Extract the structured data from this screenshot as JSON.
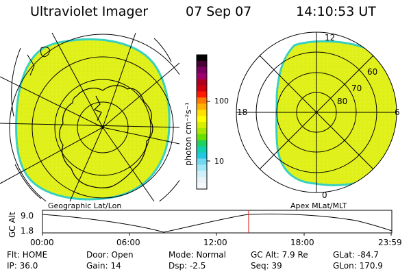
{
  "header": {
    "title": "Ultraviolet Imager",
    "date": "07 Sep 07",
    "time": "14:10:53 UT"
  },
  "colorbar": {
    "unit_label": "photon cm⁻²s⁻¹",
    "ticks": [
      "100",
      "10"
    ],
    "colors": [
      "#000000",
      "#4a0035",
      "#7a0060",
      "#a0006e",
      "#b00020",
      "#d00010",
      "#ff1a00",
      "#ff7a00",
      "#ffb000",
      "#ffe000",
      "#ffff00",
      "#d8f000",
      "#a8e800",
      "#66e000",
      "#20d060",
      "#10d0b0",
      "#20c8e0",
      "#70d8f0",
      "#a0e8f8",
      "#cfeffa",
      "#e8f4f8",
      "#f5f8fa"
    ]
  },
  "left_map": {
    "caption": "Geographic Lat/Lon",
    "fill_color": "#e0f01a",
    "edge_color": "#36d0c0"
  },
  "right_map": {
    "caption": "Apex MLat/MLT",
    "mlt_labels": {
      "top": "12",
      "left": "18",
      "right": "6",
      "bottom": "0"
    },
    "lat_labels": [
      "60",
      "70",
      "80"
    ],
    "fill_color": "#e0f01a",
    "edge_color": "#36d0c0"
  },
  "timeline": {
    "ylabel": "GC Alt",
    "yticks": [
      "9.0",
      "1.8"
    ],
    "xticks": [
      "00:00",
      "06:00",
      "12:00",
      "18:00",
      "23:59"
    ],
    "current_time_fraction": 0.59,
    "cursor_color": "#e02020"
  },
  "footer": {
    "row1": {
      "flt": "Flt: HOME",
      "door": "Door: Open",
      "mode": "Mode: Normal",
      "gcalt": "GC Alt: 7.9 Re",
      "glat": "GLat: -84.7"
    },
    "row2": {
      "ip": "IP: 36.0",
      "gain": "Gain: 14",
      "dsp": "Dsp:   -2.5",
      "seq": "Seq: 39",
      "glon": "GLon: 170.9"
    }
  }
}
